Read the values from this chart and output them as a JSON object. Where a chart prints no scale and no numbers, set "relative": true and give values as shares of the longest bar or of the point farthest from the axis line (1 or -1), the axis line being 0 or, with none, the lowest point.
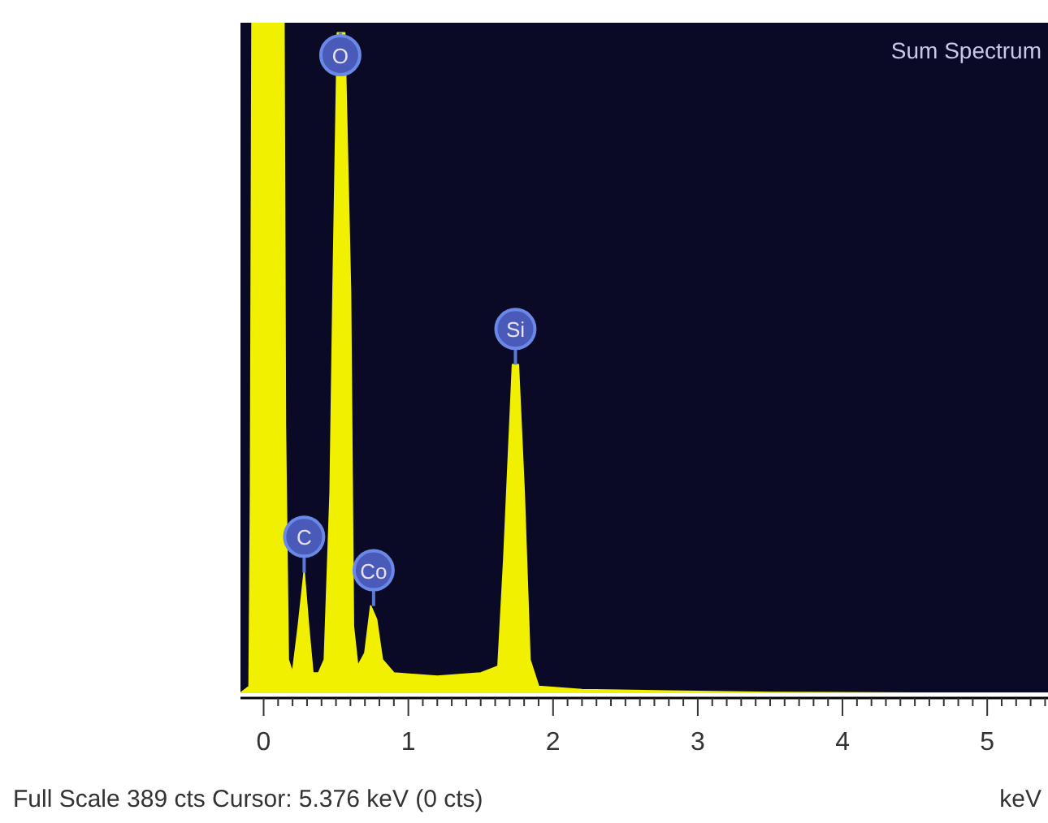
{
  "chart_data": {
    "type": "area",
    "title": "Sum Spectrum",
    "xlabel": "keV",
    "relative": true,
    "grid": false,
    "x": [
      -0.16,
      -0.1,
      -0.09,
      -0.08,
      0.14,
      0.15,
      0.17,
      0.2,
      0.24,
      0.28,
      0.31,
      0.34,
      0.38,
      0.42,
      0.46,
      0.48,
      0.51,
      0.56,
      0.6,
      0.62,
      0.65,
      0.7,
      0.74,
      0.78,
      0.82,
      0.9,
      1.2,
      1.5,
      1.62,
      1.66,
      1.72,
      1.76,
      1.8,
      1.84,
      1.9,
      2.2,
      2.8,
      3.5,
      4.5,
      5.42
    ],
    "series": [
      {
        "color": "#f0f000",
        "values": [
          0,
          0.01,
          0.3,
          1,
          1,
          0.4,
          0.05,
          0.03,
          0.1,
          0.18,
          0.1,
          0.03,
          0.03,
          0.05,
          0.3,
          0.6,
          0.985,
          0.985,
          0.6,
          0.1,
          0.04,
          0.06,
          0.13,
          0.11,
          0.05,
          0.03,
          0.025,
          0.03,
          0.04,
          0.2,
          0.49,
          0.49,
          0.3,
          0.05,
          0.01,
          0.005,
          0.003,
          0.001,
          0,
          0
        ]
      }
    ],
    "xlim": [
      -0.16,
      5.42
    ],
    "xticks": [
      0,
      1,
      2,
      3,
      4,
      5,
      {
        "value": 0.1,
        "label": null
      },
      {
        "value": 0.2,
        "label": null
      },
      {
        "value": 0.3,
        "label": null
      },
      {
        "value": 0.4,
        "label": null
      },
      {
        "value": 0.5,
        "label": null
      },
      {
        "value": 0.6,
        "label": null
      },
      {
        "value": 0.7,
        "label": null
      },
      {
        "value": 0.8,
        "label": null
      },
      {
        "value": 0.9,
        "label": null
      },
      {
        "value": 1.1,
        "label": null
      },
      {
        "value": 1.2,
        "label": null
      },
      {
        "value": 1.3,
        "label": null
      },
      {
        "value": 1.4,
        "label": null
      },
      {
        "value": 1.5,
        "label": null
      },
      {
        "value": 1.6,
        "label": null
      },
      {
        "value": 1.7,
        "label": null
      },
      {
        "value": 1.8,
        "label": null
      },
      {
        "value": 1.9,
        "label": null
      },
      {
        "value": 2.1,
        "label": null
      },
      {
        "value": 2.2,
        "label": null
      },
      {
        "value": 2.3,
        "label": null
      },
      {
        "value": 2.4,
        "label": null
      },
      {
        "value": 2.5,
        "label": null
      },
      {
        "value": 2.6,
        "label": null
      },
      {
        "value": 2.7,
        "label": null
      },
      {
        "value": 2.8,
        "label": null
      },
      {
        "value": 2.9,
        "label": null
      },
      {
        "value": 3.1,
        "label": null
      },
      {
        "value": 3.2,
        "label": null
      },
      {
        "value": 3.3,
        "label": null
      },
      {
        "value": 3.4,
        "label": null
      },
      {
        "value": 3.5,
        "label": null
      },
      {
        "value": 3.6,
        "label": null
      },
      {
        "value": 3.7,
        "label": null
      },
      {
        "value": 3.8,
        "label": null
      },
      {
        "value": 3.9,
        "label": null
      },
      {
        "value": 4.1,
        "label": null
      },
      {
        "value": 4.2,
        "label": null
      },
      {
        "value": 4.3,
        "label": null
      },
      {
        "value": 4.4,
        "label": null
      },
      {
        "value": 4.5,
        "label": null
      },
      {
        "value": 4.6,
        "label": null
      },
      {
        "value": 4.7,
        "label": null
      },
      {
        "value": 4.8,
        "label": null
      },
      {
        "value": 4.9,
        "label": null
      },
      {
        "value": 5.1,
        "label": null
      },
      {
        "value": 5.2,
        "label": null
      },
      {
        "value": 5.3,
        "label": null
      },
      {
        "value": 5.4,
        "label": null
      }
    ],
    "annotations": [
      {
        "text": "O",
        "x": 0.53,
        "y": 0.985
      },
      {
        "text": "Co",
        "x": 0.76,
        "y": 0.13
      },
      {
        "text": "Si",
        "x": 1.74,
        "y": 0.49
      },
      {
        "text": "C",
        "x": 0.28,
        "y": 0.18
      },
      "Full Scale 389 cts  Cursor: 5.376 keV (0 cts)"
    ]
  }
}
